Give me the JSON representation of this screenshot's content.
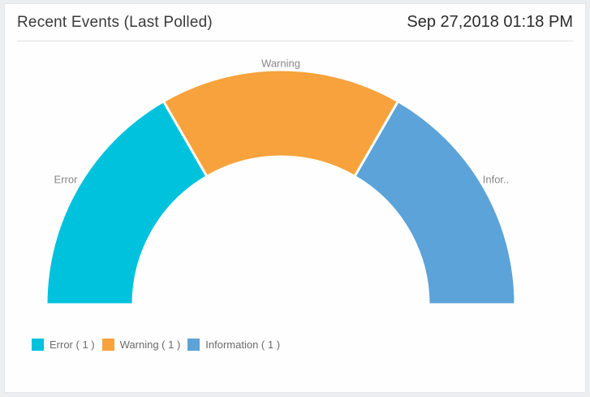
{
  "header": {
    "title": "Recent Events (Last Polled)",
    "timestamp": "Sep 27,2018 01:18 PM"
  },
  "chart_data": {
    "type": "pie",
    "variant": "half-donut",
    "title": "Recent Events (Last Polled)",
    "categories": [
      "Error",
      "Warning",
      "Information"
    ],
    "values": [
      1,
      1,
      1
    ],
    "total": 3,
    "colors": [
      "#00C2DD",
      "#F7A23C",
      "#5CA3D9"
    ],
    "slice_labels": [
      "Error",
      "Warning",
      "Infor.."
    ],
    "legend_labels": [
      "Error ( 1 )",
      "Warning ( 1 )",
      "Information ( 1 )"
    ],
    "legend_position": "bottom-left",
    "start_angle": 180,
    "end_angle": 0,
    "inner_radius_ratio": 0.63
  }
}
